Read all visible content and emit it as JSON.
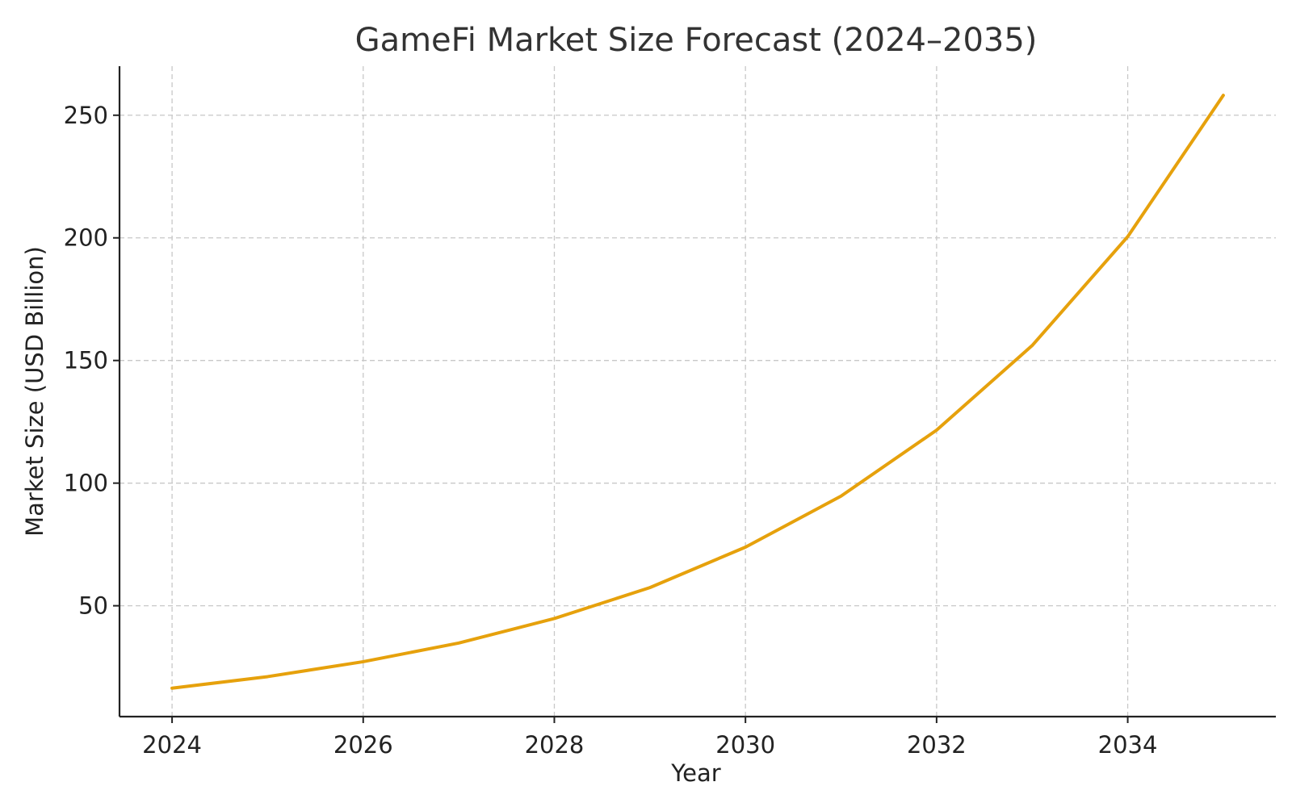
{
  "colors": {
    "series": "#e6a10c",
    "text": "#222222",
    "title": "#333333",
    "grid": "#c8c8c8"
  },
  "chart_data": {
    "type": "line",
    "title": "GameFi Market Size Forecast (2024–2035)",
    "xlabel": "Year",
    "ylabel": "Market Size (USD Billion)",
    "xlim": [
      2023.45,
      2035.55
    ],
    "ylim": [
      4.8,
      270.0
    ],
    "xticks": [
      "2024",
      "2026",
      "2028",
      "2030",
      "2032",
      "2034"
    ],
    "yticks": [
      "50",
      "100",
      "150",
      "200",
      "250"
    ],
    "grid": true,
    "legend": "none",
    "x": [
      2024,
      2025,
      2026,
      2027,
      2028,
      2029,
      2030,
      2031,
      2032,
      2033,
      2034,
      2035
    ],
    "series": [
      {
        "values": [
          16.4,
          21.1,
          27.2,
          34.8,
          44.8,
          57.4,
          73.9,
          94.7,
          121.6,
          156.1,
          200.5,
          258.1
        ]
      }
    ]
  }
}
